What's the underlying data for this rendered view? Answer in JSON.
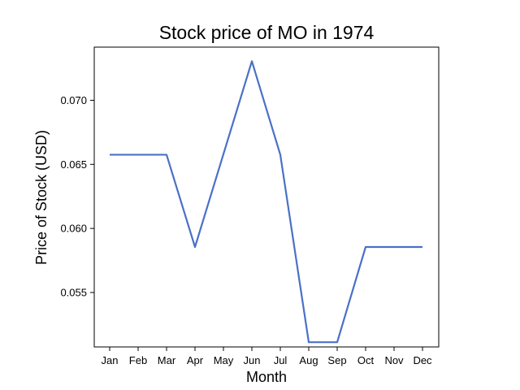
{
  "chart_data": {
    "type": "line",
    "title": "Stock price of MO in 1974",
    "xlabel": "Month",
    "ylabel": "Price of Stock (USD)",
    "categories": [
      "Jan",
      "Feb",
      "Mar",
      "Apr",
      "May",
      "Jun",
      "Jul",
      "Aug",
      "Sep",
      "Oct",
      "Nov",
      "Dec"
    ],
    "series": [
      {
        "values": [
          0.06575,
          0.06575,
          0.06575,
          0.05855,
          0.0658,
          0.07305,
          0.06575,
          0.05112,
          0.05112,
          0.05855,
          0.05855,
          0.05855
        ],
        "color": "#4a70c8"
      }
    ],
    "yticks": [
      "0.055",
      "0.060",
      "0.065",
      "0.070"
    ],
    "ylim": [
      0.05075,
      0.07415
    ],
    "grid": false,
    "legend": "none"
  }
}
